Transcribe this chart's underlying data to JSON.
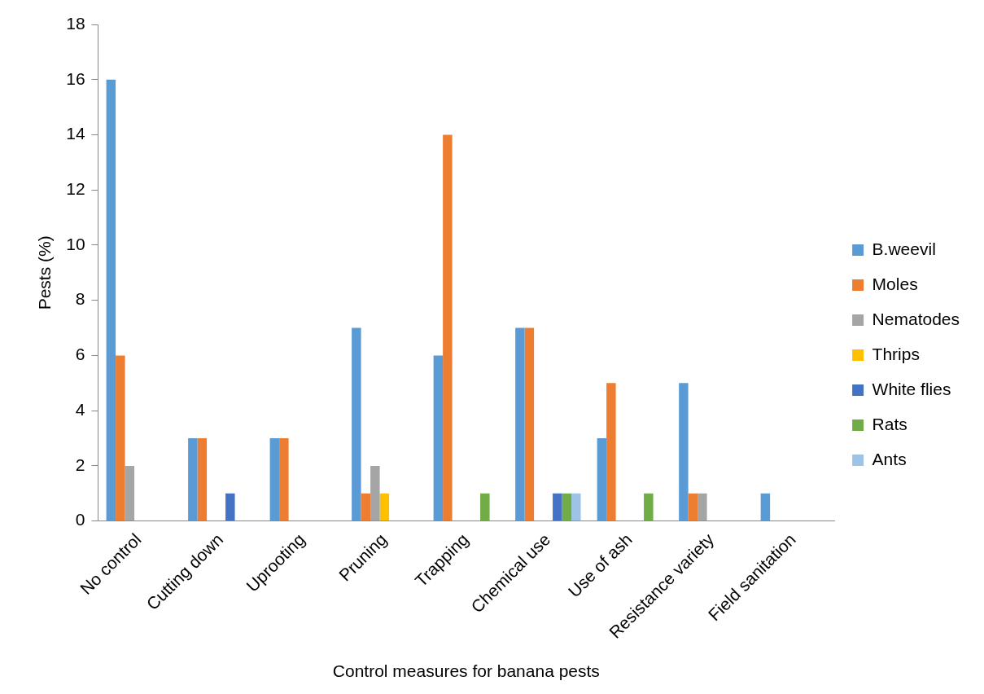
{
  "chart_data": {
    "type": "bar",
    "xlabel": "Control measures for banana pests",
    "ylabel": "Pests (%)",
    "categories": [
      "No control",
      "Cutting down",
      "Uprooting",
      "Pruning",
      "Trapping",
      "Chemical use",
      "Use of ash",
      "Resistance variety",
      "Field sanitation"
    ],
    "series": [
      {
        "name": "B.weevil",
        "color": "#5b9bd5",
        "values": [
          16,
          3,
          3,
          7,
          6,
          7,
          3,
          5,
          1
        ]
      },
      {
        "name": "Moles",
        "color": "#ed7d31",
        "values": [
          6,
          3,
          3,
          1,
          14,
          7,
          5,
          1,
          0
        ]
      },
      {
        "name": "Nematodes",
        "color": "#a5a5a5",
        "values": [
          2,
          0,
          0,
          2,
          0,
          0,
          0,
          1,
          0
        ]
      },
      {
        "name": "Thrips",
        "color": "#ffc000",
        "values": [
          0,
          0,
          0,
          1,
          0,
          0,
          0,
          0,
          0
        ]
      },
      {
        "name": "White flies",
        "color": "#4472c4",
        "values": [
          0,
          1,
          0,
          0,
          0,
          1,
          0,
          0,
          0
        ]
      },
      {
        "name": "Rats",
        "color": "#70ad47",
        "values": [
          0,
          0,
          0,
          0,
          1,
          1,
          1,
          0,
          0
        ]
      },
      {
        "name": "Ants",
        "color": "#9dc3e6",
        "values": [
          0,
          0,
          0,
          0,
          0,
          1,
          0,
          0,
          0
        ]
      }
    ],
    "ylim": [
      0,
      18
    ],
    "yticks": [
      0,
      2,
      4,
      6,
      8,
      10,
      12,
      14,
      16,
      18
    ],
    "grid": false,
    "legend": "right"
  }
}
